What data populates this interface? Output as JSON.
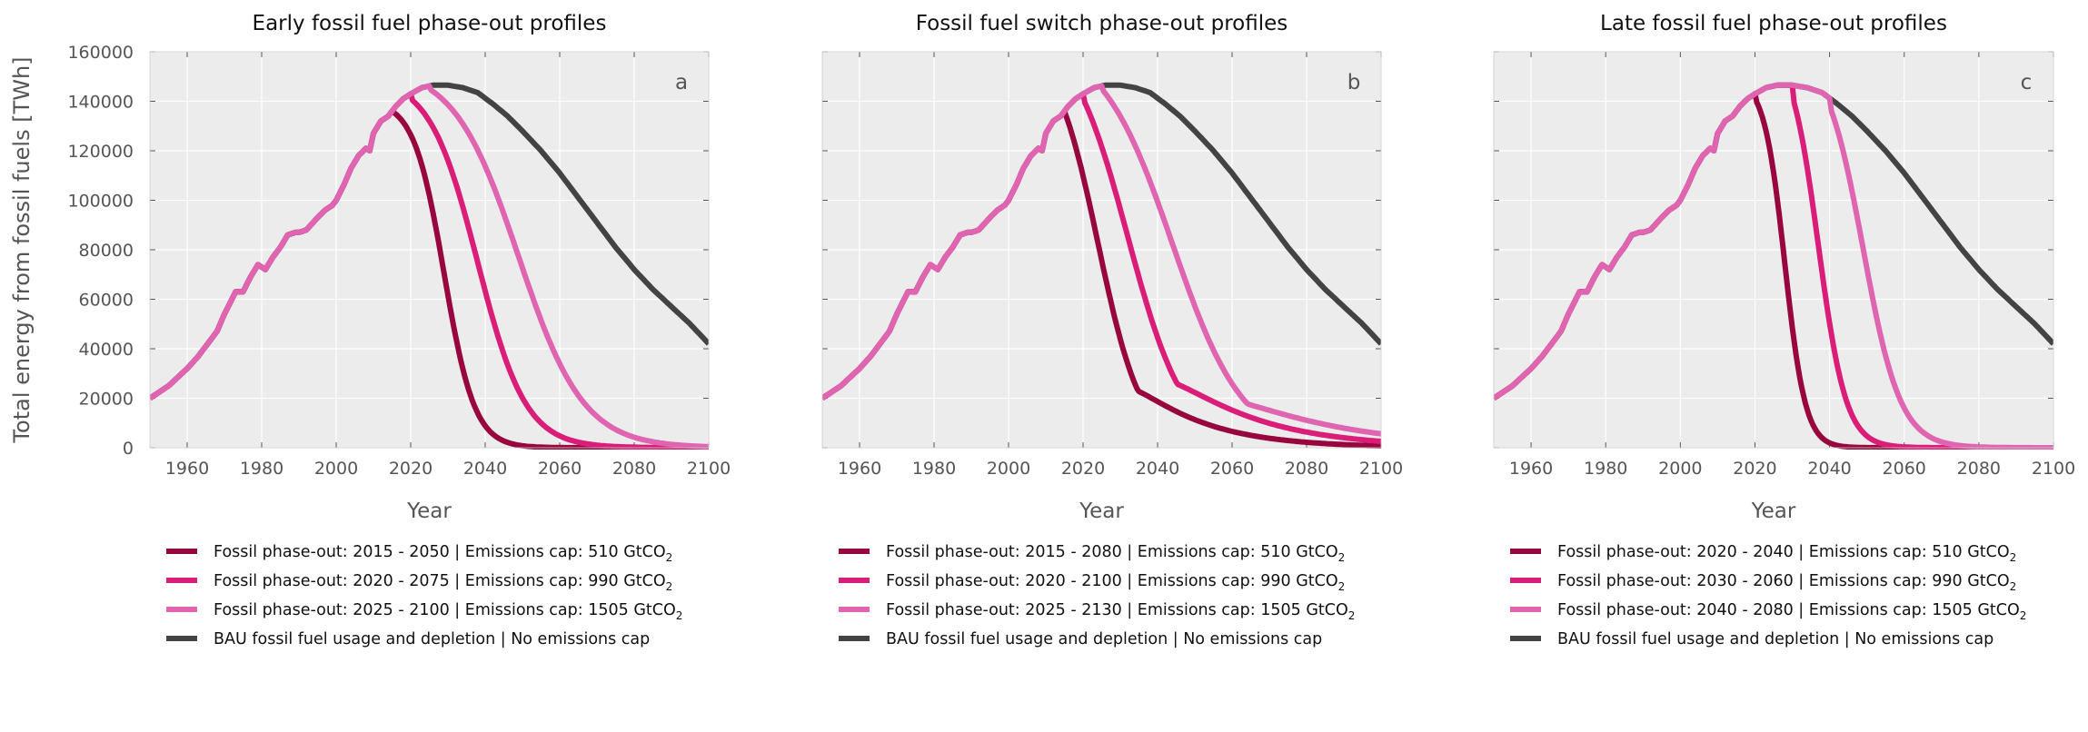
{
  "figure": {
    "ylabel": "Total energy from fossil fuels [TWh]"
  },
  "chart_data": [
    {
      "type": "line",
      "title": "Early fossil fuel phase-out profiles",
      "panel_label": "a",
      "xlabel": "Year",
      "ylabel": "Total energy from fossil fuels [TWh]",
      "xlim": [
        1950,
        2100
      ],
      "ylim": [
        0,
        160000
      ],
      "xticks": [
        1960,
        1980,
        2000,
        2020,
        2040,
        2060,
        2080,
        2100
      ],
      "yticks": [
        0,
        20000,
        40000,
        60000,
        80000,
        100000,
        120000,
        140000,
        160000
      ],
      "grid": true,
      "legend_position": "below",
      "series": [
        {
          "name": "Fossil phase-out: 2015 - 2050 | Emissions cap: 510 GtCO",
          "name_sub": "2",
          "color": "#98063f",
          "phase_start": 2015,
          "peak": 136000,
          "steepness": 0.245,
          "midpoint": 2029,
          "end": 2100
        },
        {
          "name": "Fossil phase-out: 2020 - 2075 | Emissions cap: 990 GtCO",
          "name_sub": "2",
          "color": "#da1d78",
          "phase_start": 2020,
          "peak": 141000,
          "steepness": 0.155,
          "midpoint": 2038,
          "end": 2100
        },
        {
          "name": "Fossil phase-out: 2025 - 2100 | Emissions cap: 1505 GtCO",
          "name_sub": "2",
          "color": "#df65b0",
          "phase_start": 2025,
          "peak": 145000,
          "steepness": 0.115,
          "midpoint": 2049,
          "end": 2100
        },
        {
          "name": "BAU fossil fuel usage and depletion | No emissions cap",
          "name_sub": "",
          "color": "#434343",
          "bau": true
        }
      ]
    },
    {
      "type": "line",
      "title": "Fossil fuel switch phase-out profiles",
      "panel_label": "b",
      "xlabel": "Year",
      "ylabel": "",
      "xlim": [
        1950,
        2100
      ],
      "ylim": [
        0,
        160000
      ],
      "xticks": [
        1960,
        1980,
        2000,
        2020,
        2040,
        2060,
        2080,
        2100
      ],
      "yticks": [
        0,
        20000,
        40000,
        60000,
        80000,
        100000,
        120000,
        140000,
        160000
      ],
      "grid": true,
      "legend_position": "below",
      "series": [
        {
          "name": "Fossil phase-out: 2015 - 2080 | Emissions cap: 510 GtCO",
          "name_sub": "2",
          "color": "#98063f",
          "phase_start": 2015,
          "peak": 136000,
          "steepness": 0.17,
          "midpoint": 2024,
          "tail_amp": 48000,
          "tail_decay": 0.055,
          "end": 2100
        },
        {
          "name": "Fossil phase-out: 2020 - 2100 | Emissions cap: 990 GtCO",
          "name_sub": "2",
          "color": "#da1d78",
          "phase_start": 2020,
          "peak": 141000,
          "steepness": 0.13,
          "midpoint": 2032,
          "tail_amp": 55000,
          "tail_decay": 0.045,
          "end": 2100
        },
        {
          "name": "Fossil phase-out: 2025 - 2130 | Emissions cap: 1505 GtCO",
          "name_sub": "2",
          "color": "#df65b0",
          "phase_start": 2025,
          "peak": 145000,
          "steepness": 0.105,
          "midpoint": 2044,
          "tail_amp": 40000,
          "tail_decay": 0.035,
          "end": 2100
        },
        {
          "name": "BAU fossil fuel usage and depletion | No emissions cap",
          "name_sub": "",
          "color": "#434343",
          "bau": true
        }
      ]
    },
    {
      "type": "line",
      "title": "Late fossil fuel phase-out profiles",
      "panel_label": "c",
      "xlabel": "Year",
      "ylabel": "",
      "xlim": [
        1950,
        2100
      ],
      "ylim": [
        0,
        160000
      ],
      "xticks": [
        1960,
        1980,
        2000,
        2020,
        2040,
        2060,
        2080,
        2100
      ],
      "yticks": [
        0,
        20000,
        40000,
        60000,
        80000,
        100000,
        120000,
        140000,
        160000
      ],
      "grid": true,
      "legend_position": "below",
      "series": [
        {
          "name": "Fossil phase-out: 2020 - 2040 | Emissions cap: 510 GtCO",
          "name_sub": "2",
          "color": "#98063f",
          "phase_start": 2020,
          "peak": 141000,
          "steepness": 0.36,
          "midpoint": 2028,
          "end": 2100
        },
        {
          "name": "Fossil phase-out: 2030 - 2060 | Emissions cap: 990 GtCO",
          "name_sub": "2",
          "color": "#da1d78",
          "phase_start": 2030,
          "peak": 142000,
          "steepness": 0.27,
          "midpoint": 2037,
          "end": 2100
        },
        {
          "name": "Fossil phase-out: 2040 - 2080 | Emissions cap: 1505 GtCO",
          "name_sub": "2",
          "color": "#df65b0",
          "phase_start": 2040,
          "peak": 138000,
          "steepness": 0.2,
          "midpoint": 2049,
          "end": 2100
        },
        {
          "name": "BAU fossil fuel usage and depletion | No emissions cap",
          "name_sub": "",
          "color": "#434343",
          "bau": true
        }
      ]
    }
  ],
  "bau_series": {
    "years": [
      1950,
      1955,
      1960,
      1963,
      1965,
      1968,
      1970,
      1972,
      1973,
      1975,
      1977,
      1979,
      1980,
      1981,
      1983,
      1985,
      1987,
      1989,
      1990,
      1992,
      1995,
      1997,
      1999,
      2000,
      2002,
      2004,
      2006,
      2008,
      2009,
      2010,
      2012,
      2014,
      2016,
      2018,
      2020,
      2023,
      2026,
      2030,
      2034,
      2038,
      2042,
      2046,
      2050,
      2055,
      2060,
      2065,
      2070,
      2075,
      2080,
      2085,
      2090,
      2095,
      2100
    ],
    "values": [
      20000,
      25000,
      32000,
      37000,
      41000,
      47000,
      54000,
      60000,
      63000,
      63000,
      69000,
      74000,
      73000,
      72000,
      77000,
      81000,
      86000,
      87000,
      87000,
      88000,
      93000,
      96000,
      98000,
      100000,
      106000,
      113000,
      118000,
      121000,
      120000,
      127000,
      132000,
      134000,
      138000,
      141000,
      143000,
      145500,
      146500,
      146500,
      145500,
      143500,
      139000,
      134000,
      128000,
      120000,
      111000,
      101000,
      91000,
      81000,
      72000,
      64000,
      57000,
      50000,
      42000
    ]
  }
}
